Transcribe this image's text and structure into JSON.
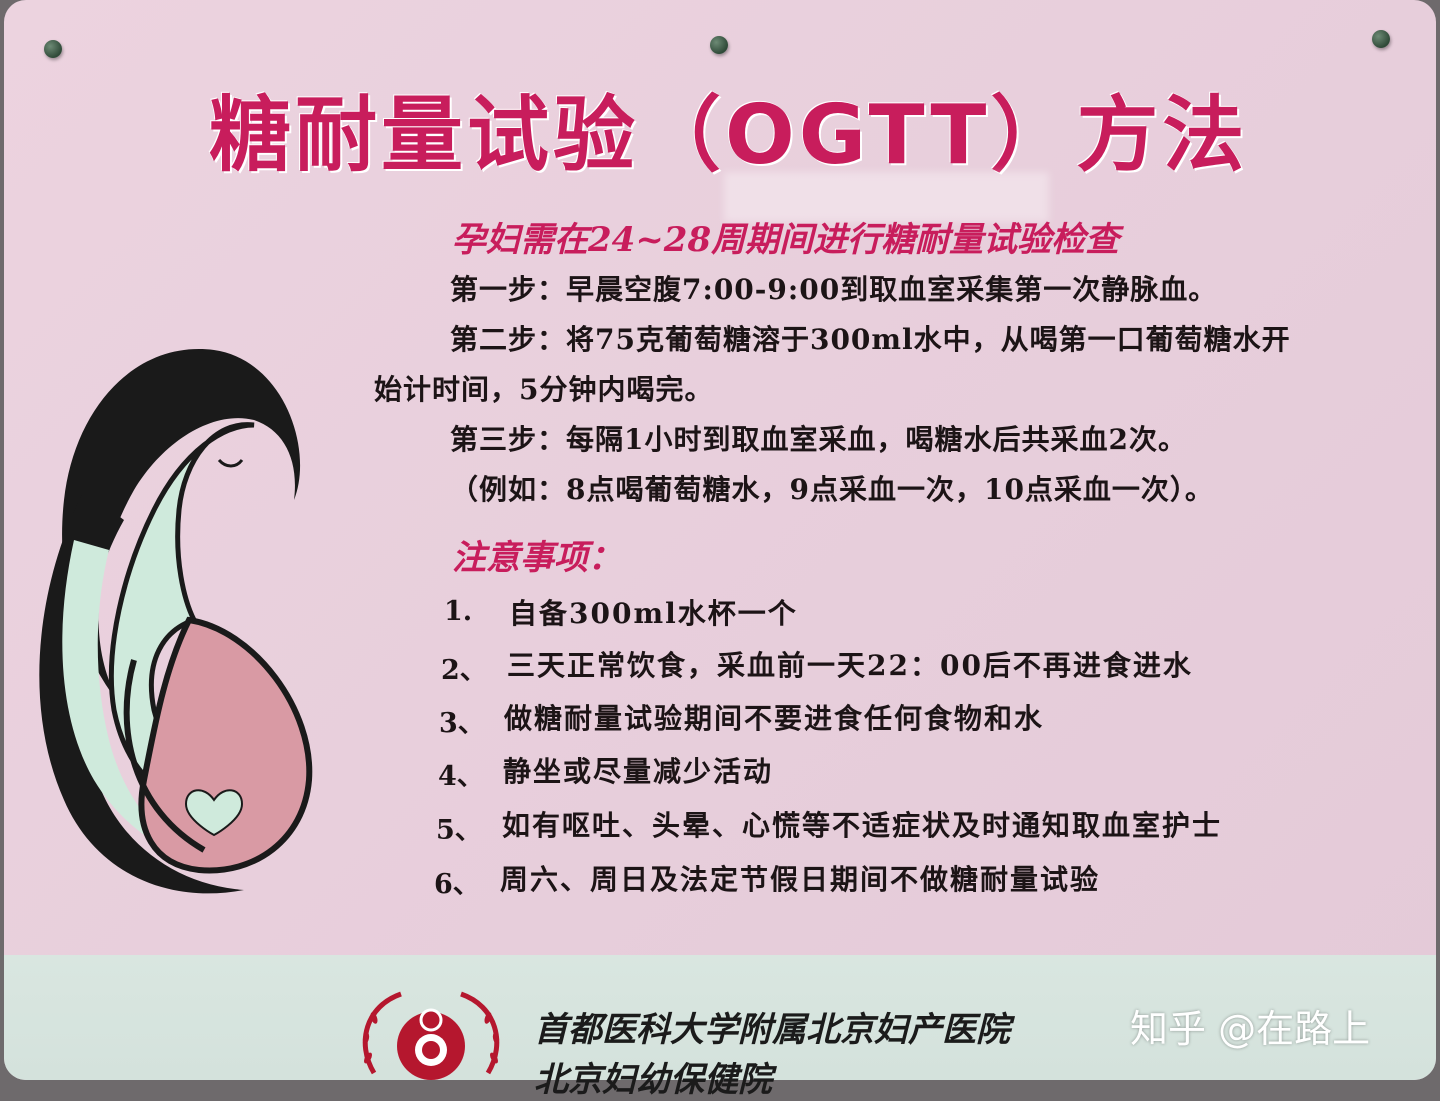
{
  "poster": {
    "title": "糖耐量试验（OGTT）方法",
    "subtitle": "孕妇需在24~28周期间进行糖耐量试验检查",
    "steps": [
      "第一步：早晨空腹7:00-9:00到取血室采集第一次静脉血。",
      "第二步：将75克葡萄糖溶于300ml水中，从喝第一口葡萄糖水开",
      "始计时间，5分钟内喝完。",
      "第三步：每隔1小时到取血室采血，喝糖水后共采血2次。",
      "（例如：8点喝葡萄糖水，9点采血一次，10点采血一次）。"
    ],
    "notes_title": "注意事项：",
    "notes": [
      {
        "num": "1.",
        "text": "自备300ml水杯一个"
      },
      {
        "num": "2、",
        "text": "三天正常饮食，采血前一天22：00后不再进食进水"
      },
      {
        "num": "3、",
        "text": "做糖耐量试验期间不要进食任何食物和水"
      },
      {
        "num": "4、",
        "text": "静坐或尽量减少活动"
      },
      {
        "num": "5、",
        "text": "如有呕吐、头晕、心慌等不适症状及时通知取血室护士"
      },
      {
        "num": "6、",
        "text": "周六、周日及法定节假日期间不做糖耐量试验"
      }
    ],
    "hospital_line1": "首都医科大学附属北京妇产医院",
    "hospital_line2": "北京妇幼保健院"
  },
  "watermark": "知乎 @在路上",
  "colors": {
    "title": "#c81d5c",
    "board": "#ecd3df",
    "footer": "#d9e6e0",
    "illustration_mint": "#cfeadc",
    "illustration_pink": "#d99aa4",
    "outline": "#1a1a1a"
  },
  "icons": [
    "pregnant-woman-illustration",
    "heart-icon",
    "hospital-logo",
    "pushpin-icon"
  ]
}
